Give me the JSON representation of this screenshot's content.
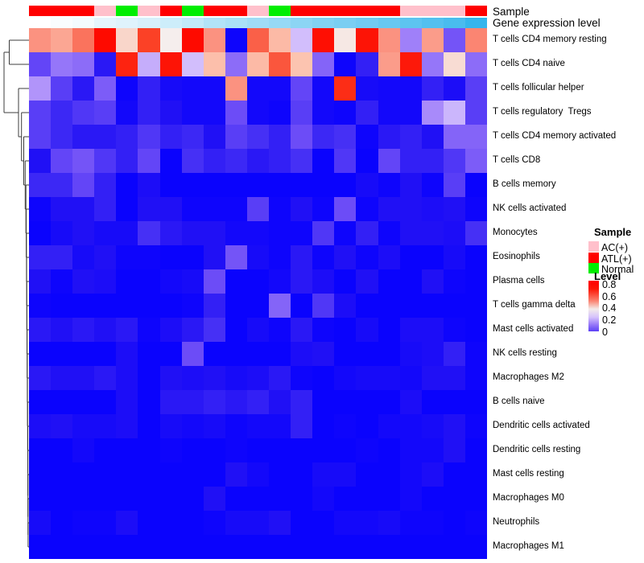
{
  "annotations": {
    "sample_label": "Sample",
    "gene_label": "Gene expression level",
    "sample_classes": [
      "ATL",
      "ATL",
      "ATL",
      "AC",
      "Normal",
      "AC",
      "ATL",
      "Normal",
      "ATL",
      "ATL",
      "AC",
      "Normal",
      "ATL",
      "ATL",
      "ATL",
      "ATL",
      "ATL",
      "AC",
      "AC",
      "AC",
      "ATL"
    ],
    "sample_colors": {
      "AC": "#FFC0CB",
      "ATL": "#FF0000",
      "Normal": "#00EE00"
    },
    "gene_expression": [
      0.0,
      0.03,
      0.06,
      0.13,
      0.16,
      0.2,
      0.25,
      0.3,
      0.38,
      0.42,
      0.47,
      0.52,
      0.57,
      0.62,
      0.66,
      0.7,
      0.75,
      0.8,
      0.85,
      0.9,
      1.0
    ],
    "gene_color_low": "#FFFFFF",
    "gene_color_high": "#35B5EC"
  },
  "legend": {
    "sample_title": "Sample",
    "sample_items": [
      {
        "label": "AC(+)",
        "color": "#FFC0CB"
      },
      {
        "label": "ATL(+)",
        "color": "#FF0000"
      },
      {
        "label": "Normal",
        "color": "#00EE00"
      }
    ],
    "level_title": "Level",
    "level_ticks": [
      "0.8",
      "0.6",
      "0.4",
      "0.2",
      "0"
    ]
  },
  "chart_data": {
    "type": "heatmap",
    "columns": 21,
    "value_range": [
      0,
      0.8
    ],
    "colormap_stops": [
      [
        0.0,
        5,
        0,
        255
      ],
      [
        0.06,
        32,
        16,
        245
      ],
      [
        0.1,
        70,
        48,
        245
      ],
      [
        0.14,
        108,
        76,
        247
      ],
      [
        0.18,
        140,
        108,
        248
      ],
      [
        0.22,
        177,
        148,
        250
      ],
      [
        0.27,
        210,
        190,
        252
      ],
      [
        0.33,
        245,
        238,
        237
      ],
      [
        0.4,
        252,
        196,
        176
      ],
      [
        0.5,
        251,
        146,
        128
      ],
      [
        0.58,
        250,
        96,
        72
      ],
      [
        0.65,
        251,
        60,
        32
      ],
      [
        0.75,
        254,
        10,
        0
      ],
      [
        0.9,
        255,
        0,
        0
      ]
    ],
    "rows": [
      {
        "label": "T cells CD4 memory resting",
        "values": [
          0.5,
          0.46,
          0.55,
          0.75,
          0.37,
          0.64,
          0.33,
          0.75,
          0.5,
          0.02,
          0.58,
          0.42,
          0.27,
          0.74,
          0.34,
          0.73,
          0.5,
          0.2,
          0.48,
          0.15,
          0.52
        ]
      },
      {
        "label": "T cells CD4 naive",
        "values": [
          0.13,
          0.19,
          0.18,
          0.07,
          0.7,
          0.25,
          0.73,
          0.27,
          0.41,
          0.18,
          0.42,
          0.6,
          0.4,
          0.17,
          0.02,
          0.08,
          0.48,
          0.72,
          0.19,
          0.36,
          0.18
        ]
      },
      {
        "label": "T cells follicular helper",
        "values": [
          0.22,
          0.12,
          0.07,
          0.16,
          0.02,
          0.08,
          0.04,
          0.03,
          0.03,
          0.5,
          0.03,
          0.03,
          0.13,
          0.03,
          0.68,
          0.04,
          0.03,
          0.03,
          0.08,
          0.05,
          0.12
        ]
      },
      {
        "label": "T cells regulatory  Tregs",
        "values": [
          0.12,
          0.09,
          0.11,
          0.12,
          0.03,
          0.08,
          0.06,
          0.03,
          0.03,
          0.14,
          0.03,
          0.02,
          0.12,
          0.03,
          0.02,
          0.08,
          0.03,
          0.03,
          0.21,
          0.26,
          0.12
        ]
      },
      {
        "label": "T cells CD4 memory activated",
        "values": [
          0.12,
          0.09,
          0.07,
          0.07,
          0.08,
          0.11,
          0.08,
          0.09,
          0.06,
          0.12,
          0.1,
          0.08,
          0.14,
          0.09,
          0.1,
          0.02,
          0.07,
          0.08,
          0.06,
          0.17,
          0.17
        ]
      },
      {
        "label": "T cells CD8",
        "values": [
          0.06,
          0.13,
          0.15,
          0.11,
          0.08,
          0.13,
          0.01,
          0.1,
          0.08,
          0.09,
          0.07,
          0.08,
          0.1,
          0.01,
          0.11,
          0.01,
          0.13,
          0.08,
          0.08,
          0.11,
          0.16
        ]
      },
      {
        "label": "B cells memory",
        "values": [
          0.09,
          0.09,
          0.13,
          0.08,
          0.01,
          0.05,
          0.01,
          0.01,
          0.01,
          0.01,
          0.01,
          0.01,
          0.01,
          0.01,
          0.01,
          0.04,
          0.02,
          0.06,
          0.02,
          0.12,
          0.01
        ]
      },
      {
        "label": "NK cells activated",
        "values": [
          0.02,
          0.06,
          0.06,
          0.08,
          0.01,
          0.06,
          0.06,
          0.02,
          0.02,
          0.02,
          0.12,
          0.02,
          0.06,
          0.02,
          0.14,
          0.02,
          0.06,
          0.06,
          0.05,
          0.06,
          0.02
        ]
      },
      {
        "label": "Monocytes",
        "values": [
          0.01,
          0.04,
          0.06,
          0.04,
          0.04,
          0.1,
          0.07,
          0.06,
          0.06,
          0.03,
          0.03,
          0.02,
          0.02,
          0.11,
          0.02,
          0.08,
          0.02,
          0.06,
          0.06,
          0.05,
          0.1
        ]
      },
      {
        "label": "Eosinophils",
        "values": [
          0.08,
          0.08,
          0.04,
          0.06,
          0.02,
          0.02,
          0.01,
          0.01,
          0.06,
          0.15,
          0.04,
          0.02,
          0.07,
          0.02,
          0.06,
          0.02,
          0.05,
          0.01,
          0.01,
          0.04,
          0.01
        ]
      },
      {
        "label": "Plasma cells",
        "values": [
          0.06,
          0.02,
          0.06,
          0.05,
          0.01,
          0.01,
          0.03,
          0.04,
          0.14,
          0.01,
          0.01,
          0.03,
          0.07,
          0.05,
          0.01,
          0.06,
          0.01,
          0.01,
          0.06,
          0.02,
          0.01
        ]
      },
      {
        "label": "T cells gamma delta",
        "values": [
          0.02,
          0.01,
          0.01,
          0.01,
          0.01,
          0.01,
          0.01,
          0.02,
          0.08,
          0.01,
          0.01,
          0.17,
          0.01,
          0.11,
          0.05,
          0.01,
          0.01,
          0.01,
          0.01,
          0.01,
          0.01
        ]
      },
      {
        "label": "Mast cells activated",
        "values": [
          0.07,
          0.06,
          0.07,
          0.06,
          0.07,
          0.02,
          0.05,
          0.07,
          0.1,
          0.01,
          0.04,
          0.02,
          0.07,
          0.02,
          0.01,
          0.04,
          0.01,
          0.05,
          0.05,
          0.02,
          0.01
        ]
      },
      {
        "label": "NK cells resting",
        "values": [
          0.01,
          0.01,
          0.01,
          0.01,
          0.05,
          0.01,
          0.01,
          0.14,
          0.01,
          0.01,
          0.01,
          0.01,
          0.05,
          0.06,
          0.01,
          0.01,
          0.01,
          0.04,
          0.05,
          0.08,
          0.02
        ]
      },
      {
        "label": "Macrophages M2",
        "values": [
          0.07,
          0.06,
          0.06,
          0.07,
          0.05,
          0.01,
          0.06,
          0.05,
          0.06,
          0.04,
          0.05,
          0.07,
          0.02,
          0.01,
          0.03,
          0.04,
          0.04,
          0.03,
          0.06,
          0.06,
          0.02
        ]
      },
      {
        "label": "B cells naive",
        "values": [
          0.01,
          0.01,
          0.01,
          0.01,
          0.05,
          0.01,
          0.07,
          0.07,
          0.08,
          0.07,
          0.08,
          0.06,
          0.08,
          0.01,
          0.01,
          0.01,
          0.01,
          0.05,
          0.01,
          0.01,
          0.01
        ]
      },
      {
        "label": "Dendritic cells activated",
        "values": [
          0.05,
          0.06,
          0.04,
          0.04,
          0.05,
          0.01,
          0.04,
          0.03,
          0.04,
          0.02,
          0.03,
          0.03,
          0.08,
          0.01,
          0.02,
          0.01,
          0.03,
          0.03,
          0.04,
          0.06,
          0.02
        ]
      },
      {
        "label": "Dendritic cells resting",
        "values": [
          0.01,
          0.01,
          0.03,
          0.01,
          0.01,
          0.01,
          0.02,
          0.01,
          0.01,
          0.02,
          0.01,
          0.01,
          0.01,
          0.01,
          0.01,
          0.02,
          0.01,
          0.03,
          0.03,
          0.06,
          0.01
        ]
      },
      {
        "label": "Mast cells resting",
        "values": [
          0.01,
          0.01,
          0.01,
          0.01,
          0.01,
          0.01,
          0.01,
          0.01,
          0.01,
          0.06,
          0.03,
          0.01,
          0.01,
          0.04,
          0.04,
          0.01,
          0.01,
          0.03,
          0.05,
          0.01,
          0.01
        ]
      },
      {
        "label": "Macrophages M0",
        "values": [
          0.01,
          0.01,
          0.01,
          0.01,
          0.01,
          0.01,
          0.01,
          0.01,
          0.06,
          0.01,
          0.01,
          0.01,
          0.01,
          0.03,
          0.01,
          0.01,
          0.01,
          0.03,
          0.01,
          0.01,
          0.01
        ]
      },
      {
        "label": "Neutrophils",
        "values": [
          0.04,
          0.01,
          0.02,
          0.02,
          0.05,
          0.01,
          0.01,
          0.01,
          0.02,
          0.04,
          0.04,
          0.06,
          0.01,
          0.01,
          0.03,
          0.03,
          0.04,
          0.02,
          0.02,
          0.01,
          0.02
        ]
      },
      {
        "label": "Macrophages M1",
        "values": [
          0.01,
          0.01,
          0.01,
          0.01,
          0.01,
          0.01,
          0.01,
          0.01,
          0.01,
          0.01,
          0.01,
          0.01,
          0.01,
          0.01,
          0.01,
          0.01,
          0.01,
          0.01,
          0.01,
          0.01,
          0.01
        ]
      }
    ],
    "dendrogram": {
      "pair_rows": [
        1,
        2
      ],
      "pair_height": 11.5,
      "root_height": 5,
      "bottom_pair_height": 34.9,
      "chain_heights": [
        23,
        26.7,
        29.5,
        31.3,
        32.2,
        32.6,
        32.9,
        33.1,
        33.3,
        33.5,
        33.7,
        33.9,
        34.1,
        34.3,
        34.5,
        34.6,
        34.7,
        34.8
      ]
    }
  }
}
